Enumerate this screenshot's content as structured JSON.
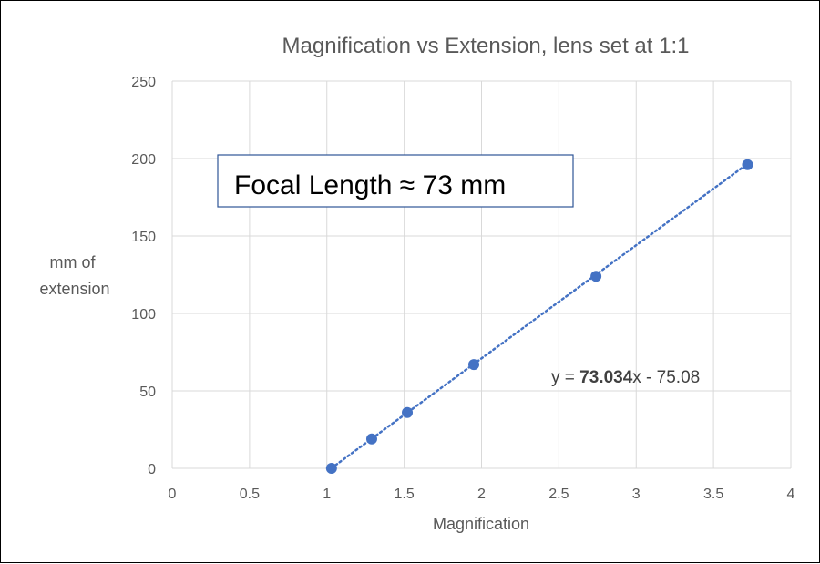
{
  "chart_data": {
    "type": "scatter",
    "title": "Magnification vs Extension, lens set at 1:1",
    "xlabel": "Magnification",
    "ylabel": [
      "mm of",
      "extension"
    ],
    "xlim": [
      0,
      4
    ],
    "ylim": [
      0,
      250
    ],
    "xticks": [
      0,
      0.5,
      1,
      1.5,
      2,
      2.5,
      3,
      3.5,
      4
    ],
    "xtick_labels": [
      "0",
      "0.5",
      "1",
      "1.5",
      "2",
      "2.5",
      "3",
      "3.5",
      "4"
    ],
    "yticks": [
      0,
      50,
      100,
      150,
      200,
      250
    ],
    "ytick_labels": [
      "0",
      "50",
      "100",
      "150",
      "200",
      "250"
    ],
    "grid": true,
    "legend": "none",
    "series": [
      {
        "points": [
          {
            "x": 1.03,
            "y": 0
          },
          {
            "x": 1.29,
            "y": 19
          },
          {
            "x": 1.52,
            "y": 36
          },
          {
            "x": 1.95,
            "y": 67
          },
          {
            "x": 2.74,
            "y": 124
          },
          {
            "x": 3.72,
            "y": 196
          }
        ],
        "color": "#4472c4"
      }
    ],
    "trendline": {
      "type": "linear",
      "slope": 73.034,
      "intercept": -75.08,
      "color": "#4472c4",
      "style": "dotted",
      "equation": {
        "prefix": "y = ",
        "slope_text": "73.034",
        "suffix": "x - 75.08"
      }
    },
    "annotation": {
      "text": "Focal Length ≈ 73 mm",
      "border_color": "#2e5597"
    }
  }
}
